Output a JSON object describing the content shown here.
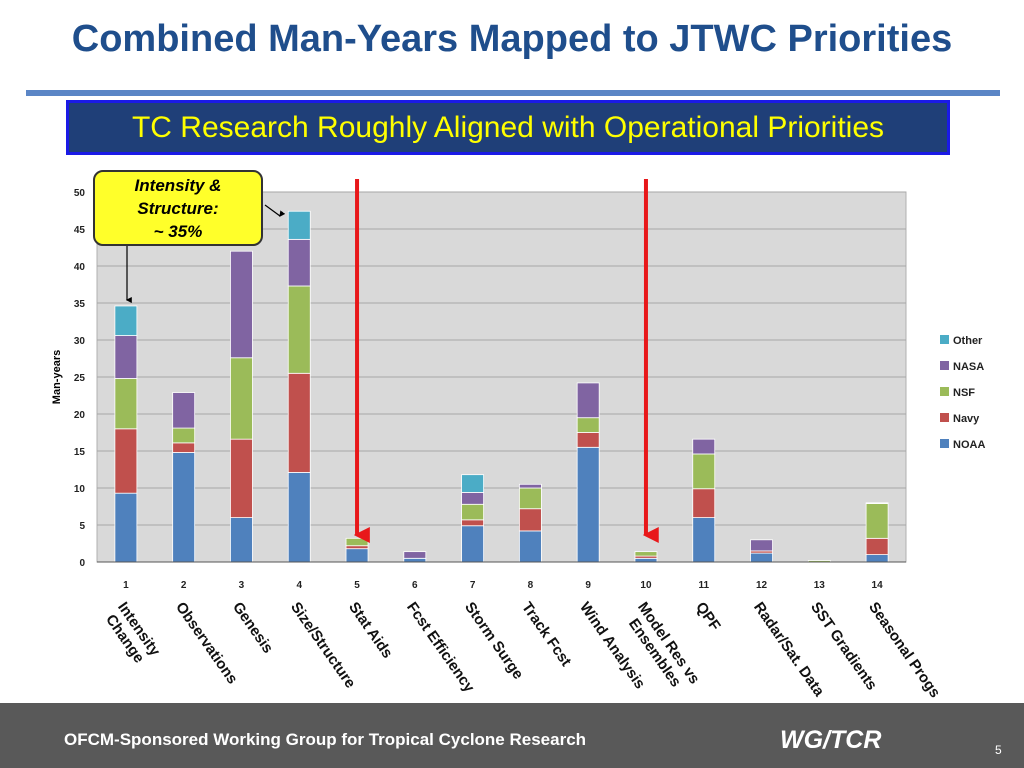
{
  "slide": {
    "title": "Combined Man-Years Mapped to JTWC Priorities",
    "banner": "TC Research Roughly Aligned with Operational Priorities",
    "callout": [
      "Intensity &",
      "Structure:",
      "~ 35%"
    ],
    "footer_text": "OFCM-Sponsored Working Group for Tropical Cyclone Research",
    "footer_logo": "WG/TCR",
    "page_number": "5"
  },
  "colors": {
    "title": "#1f4e8c",
    "banner_bg": "#1f3f78",
    "banner_text": "#ffff00",
    "callout_bg": "#ffff2a",
    "arrow": "#e8181a",
    "footer_bg": "#595959"
  },
  "chart_data": {
    "type": "bar",
    "stacked": true,
    "ylabel": "Man-years",
    "ylim": [
      0,
      50
    ],
    "yticks": [
      0,
      5,
      10,
      15,
      20,
      25,
      30,
      35,
      40,
      45,
      50
    ],
    "grid": true,
    "legend_position": "right",
    "x": [
      "1",
      "2",
      "3",
      "4",
      "5",
      "6",
      "7",
      "8",
      "9",
      "10",
      "11",
      "12",
      "13",
      "14"
    ],
    "categories": [
      "Intensity\nChange",
      "Observations",
      "Genesis",
      "Size/Structure",
      "Stat Aids",
      "Fcst Efficiency",
      "Storm Surge",
      "Track Fcst",
      "Wind Analysis",
      "Model Res vs\nEnsembles",
      "QPF",
      "Radar/Sat. Data",
      "SST Gradients",
      "Seasonal Progs"
    ],
    "series": [
      {
        "name": "NOAA",
        "color": "#4f81bd",
        "values": [
          9.3,
          14.8,
          6.0,
          12.1,
          1.8,
          0.5,
          4.9,
          4.2,
          15.5,
          0.5,
          6.0,
          1.2,
          0.0,
          1.0
        ]
      },
      {
        "name": "Navy",
        "color": "#c0504d",
        "values": [
          8.7,
          1.3,
          10.6,
          13.4,
          0.4,
          0.0,
          0.8,
          3.0,
          2.0,
          0.3,
          3.9,
          0.3,
          0.0,
          2.2
        ]
      },
      {
        "name": "NSF",
        "color": "#9bbb59",
        "values": [
          6.8,
          2.0,
          11.0,
          11.8,
          1.0,
          0.0,
          2.1,
          2.8,
          2.0,
          0.6,
          4.7,
          0.0,
          0.2,
          4.7
        ]
      },
      {
        "name": "NASA",
        "color": "#8064a2",
        "values": [
          5.8,
          4.8,
          14.4,
          6.3,
          0.0,
          0.9,
          1.6,
          0.5,
          4.7,
          0.0,
          2.0,
          1.5,
          0.0,
          0.1
        ]
      },
      {
        "name": "Other",
        "color": "#4bacc6",
        "values": [
          4.0,
          0.0,
          0.0,
          3.8,
          0.0,
          0.0,
          2.4,
          0.0,
          0.0,
          0.0,
          0.0,
          0.0,
          0.0,
          0.0
        ]
      }
    ],
    "legend_order": [
      "Other",
      "NASA",
      "NSF",
      "Navy",
      "NOAA"
    ]
  }
}
